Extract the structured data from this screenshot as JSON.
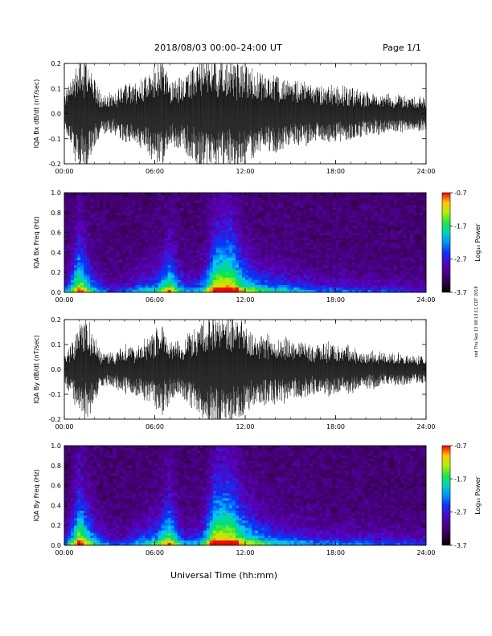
{
  "header": {
    "title": "2018/08/03   00:00–24:00 UT",
    "page": "Page 1/1"
  },
  "footer": {
    "xaxis_title": "Universal Time (hh:mm)",
    "side_note": "ssd Thu Sep 13 08:13:11 CDT 2018"
  },
  "chart_data": [
    {
      "type": "line",
      "title": "",
      "ylabel": "IQA Bx dB/dt (nT/sec)",
      "xlabel": "",
      "x_ticks": [
        "00:00",
        "06:00",
        "12:00",
        "18:00",
        "24:00"
      ],
      "xlim_hours": [
        0,
        24
      ],
      "ylim": [
        -0.2,
        0.2
      ],
      "y_ticks": [
        "-0.2",
        "-0.1",
        "0.0",
        "0.1",
        "0.2"
      ],
      "series": [
        {
          "x_hours": [
            0,
            0.5,
            1,
            1.5,
            2,
            2.5,
            3,
            3.5,
            4,
            4.5,
            5,
            5.5,
            6,
            6.5,
            7,
            7.5,
            8,
            8.5,
            9,
            9.5,
            10,
            10.5,
            11,
            11.5,
            12,
            12.5,
            13,
            13.5,
            14,
            14.5,
            15,
            15.5,
            16,
            16.5,
            17,
            17.5,
            18,
            18.5,
            19,
            19.5,
            20,
            20.5,
            21,
            21.5,
            22,
            22.5,
            23,
            23.5,
            24
          ],
          "amplitude": [
            0.07,
            0.14,
            0.2,
            0.2,
            0.12,
            0.07,
            0.07,
            0.08,
            0.11,
            0.1,
            0.12,
            0.14,
            0.18,
            0.2,
            0.13,
            0.12,
            0.14,
            0.17,
            0.2,
            0.2,
            0.2,
            0.2,
            0.2,
            0.2,
            0.18,
            0.16,
            0.15,
            0.14,
            0.14,
            0.13,
            0.12,
            0.12,
            0.12,
            0.1,
            0.1,
            0.11,
            0.1,
            0.1,
            0.1,
            0.08,
            0.08,
            0.08,
            0.07,
            0.07,
            0.07,
            0.07,
            0.06,
            0.06,
            0.06
          ]
        }
      ],
      "grid": false
    },
    {
      "type": "heatmap",
      "title": "",
      "ylabel": "IQA Bx Freq (Hz)",
      "xlabel": "",
      "x_ticks": [
        "00:00",
        "06:00",
        "12:00",
        "18:00",
        "24:00"
      ],
      "xlim_hours": [
        0,
        24
      ],
      "ylim": [
        0.0,
        1.0
      ],
      "y_ticks": [
        "0.0",
        "0.2",
        "0.4",
        "0.6",
        "0.8",
        "1.0"
      ],
      "colorbar": {
        "label": "Log₁₀ Power",
        "min": -3.7,
        "max": -0.7,
        "ticks": [
          "-0.7",
          "-1.7",
          "-2.7",
          "-3.7"
        ]
      },
      "activity_hours": [
        0,
        1,
        2,
        3,
        4,
        5,
        6,
        7,
        8,
        9,
        10,
        11,
        12,
        13,
        14,
        15,
        16,
        17,
        18,
        19,
        20,
        21,
        22,
        23,
        24
      ],
      "activity_level": [
        0.3,
        0.9,
        0.5,
        0.25,
        0.3,
        0.45,
        0.5,
        0.8,
        0.4,
        0.45,
        0.95,
        1.0,
        0.7,
        0.55,
        0.5,
        0.45,
        0.4,
        0.3,
        0.35,
        0.3,
        0.3,
        0.25,
        0.25,
        0.2,
        0.2
      ]
    },
    {
      "type": "line",
      "title": "",
      "ylabel": "IQA By dB/dt (nT/sec)",
      "xlabel": "",
      "x_ticks": [
        "00:00",
        "06:00",
        "12:00",
        "18:00",
        "24:00"
      ],
      "xlim_hours": [
        0,
        24
      ],
      "ylim": [
        -0.2,
        0.2
      ],
      "y_ticks": [
        "-0.2",
        "-0.1",
        "0.0",
        "0.1",
        "0.2"
      ],
      "series": [
        {
          "x_hours": [
            0,
            0.5,
            1,
            1.5,
            2,
            2.5,
            3,
            3.5,
            4,
            4.5,
            5,
            5.5,
            6,
            6.5,
            7,
            7.5,
            8,
            8.5,
            9,
            9.5,
            10,
            10.5,
            11,
            11.5,
            12,
            12.5,
            13,
            13.5,
            14,
            14.5,
            15,
            15.5,
            16,
            16.5,
            17,
            17.5,
            18,
            18.5,
            19,
            19.5,
            20,
            20.5,
            21,
            21.5,
            22,
            22.5,
            23,
            23.5,
            24
          ],
          "amplitude": [
            0.05,
            0.1,
            0.16,
            0.2,
            0.12,
            0.06,
            0.06,
            0.07,
            0.09,
            0.09,
            0.1,
            0.12,
            0.14,
            0.18,
            0.11,
            0.1,
            0.12,
            0.15,
            0.17,
            0.2,
            0.2,
            0.2,
            0.2,
            0.2,
            0.16,
            0.14,
            0.13,
            0.12,
            0.12,
            0.12,
            0.11,
            0.11,
            0.1,
            0.09,
            0.09,
            0.1,
            0.09,
            0.09,
            0.09,
            0.07,
            0.07,
            0.07,
            0.06,
            0.06,
            0.06,
            0.06,
            0.05,
            0.05,
            0.05
          ]
        }
      ],
      "grid": false
    },
    {
      "type": "heatmap",
      "title": "",
      "ylabel": "IQA By Freq (Hz)",
      "xlabel": "",
      "x_ticks": [
        "00:00",
        "06:00",
        "12:00",
        "18:00",
        "24:00"
      ],
      "xlim_hours": [
        0,
        24
      ],
      "ylim": [
        0.0,
        1.0
      ],
      "y_ticks": [
        "0.0",
        "0.2",
        "0.4",
        "0.6",
        "0.8",
        "1.0"
      ],
      "colorbar": {
        "label": "Log₁₀ Power",
        "min": -3.7,
        "max": -0.7,
        "ticks": [
          "-0.7",
          "-1.7",
          "-2.7",
          "-3.7"
        ]
      },
      "activity_hours": [
        0,
        1,
        2,
        3,
        4,
        5,
        6,
        7,
        8,
        9,
        10,
        11,
        12,
        13,
        14,
        15,
        16,
        17,
        18,
        19,
        20,
        21,
        22,
        23,
        24
      ],
      "activity_level": [
        0.3,
        0.95,
        0.55,
        0.3,
        0.3,
        0.45,
        0.55,
        0.85,
        0.4,
        0.45,
        1.0,
        1.0,
        0.75,
        0.6,
        0.5,
        0.45,
        0.4,
        0.35,
        0.35,
        0.35,
        0.35,
        0.3,
        0.3,
        0.25,
        0.25
      ]
    }
  ]
}
